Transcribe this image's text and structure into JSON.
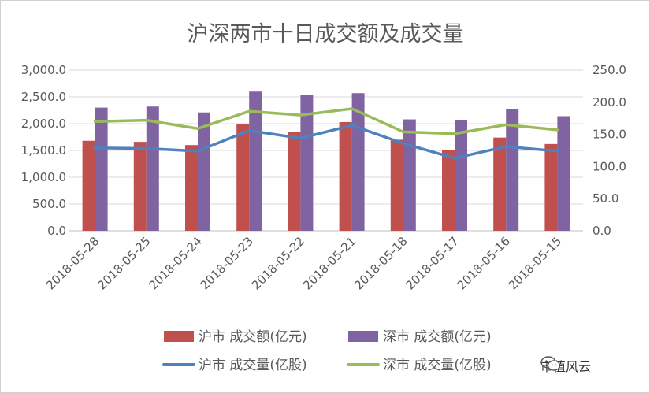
{
  "chart_data": {
    "type": "bar+line",
    "title": "沪深两市十日成交额及成交量",
    "categories": [
      "2018-05-28",
      "2018-05-25",
      "2018-05-24",
      "2018-05-23",
      "2018-05-22",
      "2018-05-21",
      "2018-05-18",
      "2018-05-17",
      "2018-05-16",
      "2018-05-15"
    ],
    "bar_series": [
      {
        "name": "沪市 成交额(亿元)",
        "axis": "left",
        "color": "#c0504d",
        "values": [
          1680,
          1660,
          1600,
          2000,
          1850,
          2030,
          1700,
          1500,
          1740,
          1620
        ]
      },
      {
        "name": "深市 成交额(亿元)",
        "axis": "left",
        "color": "#8064a2",
        "values": [
          2300,
          2320,
          2210,
          2600,
          2530,
          2570,
          2080,
          2060,
          2270,
          2140
        ]
      }
    ],
    "line_series": [
      {
        "name": "沪市 成交量(亿股)",
        "axis": "right",
        "color": "#4f81bd",
        "values": [
          129,
          128,
          124,
          156,
          144,
          164,
          136,
          113,
          131,
          124
        ]
      },
      {
        "name": "深市 成交量(亿股)",
        "axis": "right",
        "color": "#9bbb59",
        "values": [
          170,
          172,
          159,
          186,
          180,
          190,
          154,
          151,
          165,
          157
        ]
      }
    ],
    "y_left": {
      "min": 0,
      "max": 3000,
      "step": 500,
      "tick_labels": [
        "0.0",
        "500.0",
        "1,000.0",
        "1,500.0",
        "2,000.0",
        "2,500.0",
        "3,000.0"
      ]
    },
    "y_right": {
      "min": 0,
      "max": 250,
      "step": 50,
      "tick_labels": [
        "0.0",
        "50.0",
        "100.0",
        "150.0",
        "200.0",
        "250.0"
      ]
    },
    "grid": true,
    "legend_position": "bottom"
  },
  "watermark": {
    "text": "市值风云",
    "icon": "wechat-icon"
  }
}
